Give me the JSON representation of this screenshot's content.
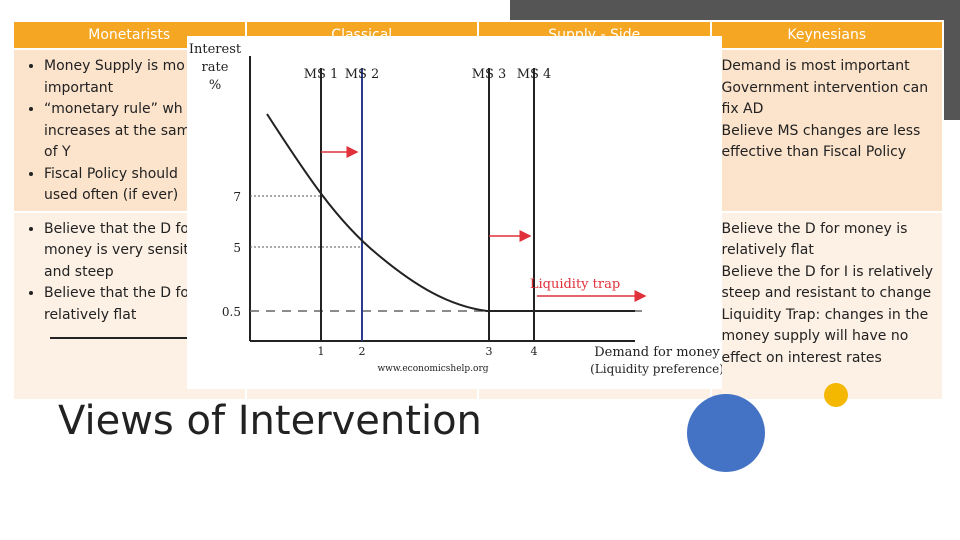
{
  "table": {
    "headers": [
      "Monetarists",
      "Classical",
      "Supply - Side",
      "Keynesians"
    ],
    "monetarists": {
      "row1": [
        "Money Supply is mo",
        "important",
        "“monetary rule” wh",
        "increases at the sam",
        "of Y",
        "Fiscal Policy should",
        "used often (if ever)"
      ],
      "row1_bullets": [
        0,
        2,
        5
      ],
      "row2": [
        "Believe that the D fo",
        "money is very sensit",
        "and steep",
        "Believe that the D fo",
        "relatively flat"
      ],
      "row2_bullets": [
        0,
        3
      ]
    },
    "keynesians": {
      "row1": [
        "Demand is most important",
        "Government intervention can",
        "fix AD",
        "Believe MS changes are less",
        "effective than Fiscal Policy"
      ],
      "row2": [
        "Believe the D for money is",
        "relatively flat",
        "Believe the D for I is relatively",
        "steep and resistant to change",
        "Liquidity Trap: changes in the",
        "money supply will have no",
        "effect on interest rates"
      ]
    }
  },
  "slide_title": "Views of Intervention",
  "colors": {
    "header": "#f5a623",
    "row1": "#fbe3cc",
    "row2": "#fdf1e6",
    "accent_blue": "#4472c4",
    "accent_yellow": "#f5b800",
    "arrow_red": "#e0303a",
    "ms2_line": "#2b3a8c"
  },
  "chart_data": {
    "type": "line",
    "ylabel": "Interest rate %",
    "xlabel": "Demand for money (Liquidity preference)",
    "source": "www.economicshelp.org",
    "y_ticks": [
      "7",
      "5",
      "0.5"
    ],
    "x_ticks": [
      "1",
      "2",
      "3",
      "4"
    ],
    "money_supply_lines": [
      {
        "label": "MS 1",
        "x": 1
      },
      {
        "label": "MS 2",
        "x": 2
      },
      {
        "label": "MS 3",
        "x": 3
      },
      {
        "label": "MS 4",
        "x": 4
      }
    ],
    "intersections": [
      {
        "x": 1,
        "y": 7
      },
      {
        "x": 2,
        "y": 5
      },
      {
        "x": 3,
        "y": 0.5
      },
      {
        "x": 4,
        "y": 0.5
      }
    ],
    "annotation": "Liquidity trap"
  }
}
